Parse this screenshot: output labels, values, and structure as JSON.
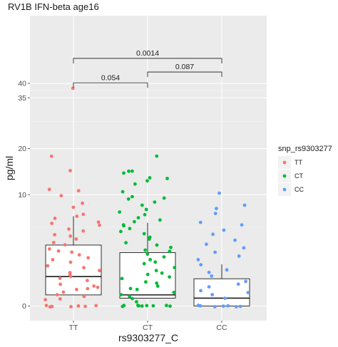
{
  "chart_data": {
    "type": "box_jitter",
    "title": "RV1B IFN-beta age16",
    "xlabel": "rs9303277_C",
    "ylabel": "pg/ml",
    "y_scale": "sqrt",
    "ylim": [
      0,
      46
    ],
    "y_ticks": [
      0,
      10,
      20,
      35,
      40
    ],
    "categories": [
      "TT",
      "CT",
      "CC"
    ],
    "legend": {
      "title": "snp_rs9303277",
      "position": "right",
      "entries": [
        {
          "label": "TT",
          "color": "#F8766D"
        },
        {
          "label": "CT",
          "color": "#00BA38"
        },
        {
          "label": "CC",
          "color": "#619CFF"
        }
      ]
    },
    "boxes": [
      {
        "category": "TT",
        "q1": 0.1,
        "median": 0.7,
        "q3": 3.0,
        "whisker_low": 0,
        "whisker_high": 6.5
      },
      {
        "category": "CT",
        "q1": 0.05,
        "median": 0.1,
        "q3": 2.3,
        "whisker_low": 0,
        "whisker_high": 5.6
      },
      {
        "category": "CC",
        "q1": 0,
        "median": 0.05,
        "q3": 0.6,
        "whisker_low": 0,
        "whisker_high": 1.4
      }
    ],
    "points": {
      "TT": [
        38.3,
        18,
        14.8,
        11.1,
        10.7,
        9.9,
        8.4,
        7.8,
        6.7,
        6.5,
        6.1,
        5.8,
        5.5,
        5.2,
        4.8,
        4.5,
        4.2,
        3.9,
        3.6,
        3.3,
        3.0,
        2.7,
        2.5,
        2.3,
        2.1,
        1.9,
        1.7,
        1.5,
        1.3,
        1.2,
        1.0,
        0.9,
        0.8,
        0.7,
        0.6,
        0.5,
        0.4,
        0.35,
        0.3,
        0.25,
        0.2,
        0.15,
        0.1,
        0.08,
        0.05,
        0.03,
        0,
        0,
        0,
        0,
        0,
        0,
        0,
        0
      ],
      "CT": [
        18.3,
        14.8,
        14.5,
        14.1,
        13.4,
        13.0,
        12.5,
        12.0,
        10.5,
        9.6,
        9.3,
        9.1,
        8.6,
        8.1,
        7.5,
        7.2,
        6.8,
        6.4,
        6.0,
        5.7,
        5.4,
        5.1,
        4.8,
        4.5,
        4.2,
        3.9,
        3.6,
        3.3,
        3.0,
        2.8,
        2.6,
        2.4,
        2.2,
        2.0,
        1.8,
        1.6,
        1.4,
        1.2,
        1.0,
        0.9,
        0.8,
        0.7,
        0.6,
        0.5,
        0.4,
        0.3,
        0.25,
        0.2,
        0.15,
        0.1,
        0.08,
        0.05,
        0.02,
        0,
        0,
        0,
        0,
        0,
        0,
        0,
        0,
        0
      ],
      "CC": [
        10.3,
        8.1,
        7.6,
        6.8,
        5.7,
        5.2,
        4.6,
        4.1,
        3.5,
        3.1,
        2.8,
        2.4,
        2.0,
        1.7,
        1.4,
        1.1,
        0.9,
        0.7,
        0.5,
        0.4,
        0.3,
        0.2,
        0.15,
        0.1,
        0.05,
        0,
        0,
        0,
        0,
        0,
        0,
        0
      ]
    },
    "comparisons": [
      {
        "from": "TT",
        "to": "CT",
        "label": "0.054",
        "bracket_y": 40.2
      },
      {
        "from": "CT",
        "to": "CC",
        "label": "0.087",
        "bracket_y": 44.2
      },
      {
        "from": "TT",
        "to": "CC",
        "label": "0.0014",
        "bracket_y": 49.5
      }
    ],
    "grid": true
  }
}
